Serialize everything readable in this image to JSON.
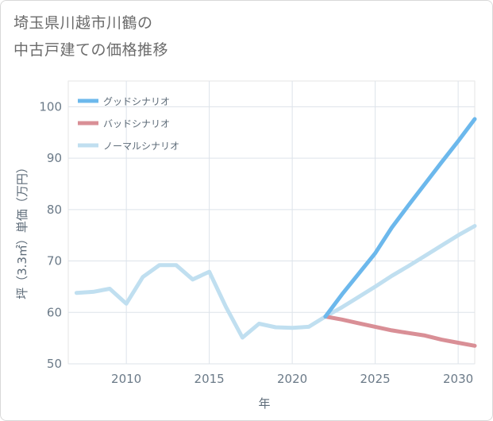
{
  "title_lines": [
    "埼玉県川越市川鶴の",
    "中古戸建ての価格推移"
  ],
  "chart_data": {
    "type": "line",
    "title": "埼玉県川越市川鶴の中古戸建ての価格推移",
    "xlabel": "年",
    "ylabel": "坪（3.3㎡）単価（万円）",
    "xlim": [
      2006.5,
      2031
    ],
    "ylim": [
      50,
      105
    ],
    "xticks": [
      2010,
      2015,
      2020,
      2025,
      2030
    ],
    "yticks": [
      50,
      60,
      70,
      80,
      90,
      100
    ],
    "grid": true,
    "legend_position": "top-left",
    "series": [
      {
        "name": "グッドシナリオ",
        "color": "#6cb8ec",
        "x": [
          2022,
          2023,
          2024,
          2025,
          2026,
          2027,
          2028,
          2029,
          2030,
          2031
        ],
        "y": [
          59.2,
          63.5,
          67.5,
          71.5,
          76.5,
          80.8,
          85.0,
          89.2,
          93.3,
          97.6
        ]
      },
      {
        "name": "バッドシナリオ",
        "color": "#d98f96",
        "x": [
          2022,
          2023,
          2024,
          2025,
          2026,
          2027,
          2028,
          2029,
          2030,
          2031
        ],
        "y": [
          59.2,
          58.6,
          57.9,
          57.2,
          56.5,
          56.0,
          55.5,
          54.7,
          54.1,
          53.5
        ]
      },
      {
        "name": "ノーマルシナリオ",
        "color": "#c0dff0",
        "x": [
          2007,
          2008,
          2009,
          2010,
          2011,
          2012,
          2013,
          2014,
          2015,
          2016,
          2017,
          2018,
          2019,
          2020,
          2021,
          2022,
          2023,
          2024,
          2025,
          2026,
          2027,
          2028,
          2029,
          2030,
          2031
        ],
        "y": [
          63.8,
          64.0,
          64.6,
          61.7,
          66.9,
          69.2,
          69.2,
          66.4,
          67.9,
          61.1,
          55.1,
          57.8,
          57.1,
          57.0,
          57.2,
          59.2,
          61.0,
          63.0,
          65.0,
          67.1,
          69.0,
          71.0,
          73.0,
          75.0,
          76.8
        ]
      }
    ]
  }
}
